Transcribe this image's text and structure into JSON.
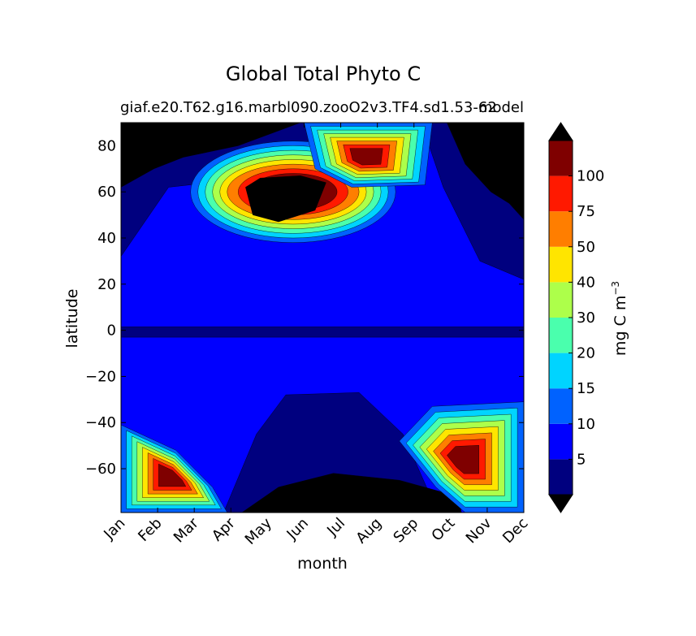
{
  "chart_data": {
    "type": "heatmap",
    "title": "Global Total Phyto C",
    "subtitle_left": "giaf.e20.T62.g16.marbl090.zooO2v3.TF4.sd1.53-62",
    "subtitle_right": "model",
    "xlabel": "month",
    "ylabel": "latitude",
    "x_ticks": [
      "Jan",
      "Feb",
      "Mar",
      "Apr",
      "May",
      "Jun",
      "Jul",
      "Aug",
      "Sep",
      "Oct",
      "Nov",
      "Dec"
    ],
    "y_ticks": [
      80,
      60,
      40,
      20,
      0,
      -20,
      -40,
      -60
    ],
    "y_tick_labels": [
      "80",
      "60",
      "40",
      "20",
      "0",
      "−20",
      "−40",
      "−60"
    ],
    "ylim": [
      -79,
      90
    ],
    "colorbar": {
      "label_main": "mg C m",
      "label_sup": "−3",
      "levels": [
        5,
        10,
        15,
        20,
        30,
        40,
        50,
        75,
        100
      ],
      "tick_labels": [
        "5",
        "10",
        "15",
        "20",
        "30",
        "40",
        "50",
        "75",
        "100"
      ],
      "colors": [
        "#00007f",
        "#0000ff",
        "#0062ff",
        "#00d4ff",
        "#4affad",
        "#adff4a",
        "#ffe500",
        "#ff7e00",
        "#ff1900",
        "#7f0000"
      ],
      "over_color": "#000000",
      "under_color": "#000000",
      "extend": "both"
    },
    "regions": [
      {
        "name": "background",
        "level": 1
      },
      {
        "name": "equatorial-band",
        "level": 0,
        "points": [
          [
            0,
            1.5
          ],
          [
            11,
            1.5
          ],
          [
            11,
            -3
          ],
          [
            0,
            -3
          ]
        ]
      },
      {
        "name": "south-subtropical-gyre",
        "level": 0,
        "points": [
          [
            2.8,
            -79
          ],
          [
            3.7,
            -45
          ],
          [
            4.5,
            -28
          ],
          [
            6.5,
            -27
          ],
          [
            7.7,
            -45
          ],
          [
            8.4,
            -70
          ],
          [
            8.2,
            -79
          ]
        ]
      },
      {
        "name": "north-polar-winter-low",
        "level": 0,
        "points": [
          [
            0,
            90
          ],
          [
            0,
            32
          ],
          [
            1.3,
            62
          ],
          [
            3,
            65
          ],
          [
            5.1,
            82
          ],
          [
            5.4,
            90
          ]
        ]
      },
      {
        "name": "north-autumn-low",
        "level": 0,
        "points": [
          [
            8.2,
            90
          ],
          [
            8.8,
            62
          ],
          [
            9.8,
            30
          ],
          [
            11,
            22
          ],
          [
            11,
            90
          ]
        ]
      },
      {
        "name": "north-winter-dark-left",
        "level": -1,
        "points": [
          [
            0,
            90
          ],
          [
            0,
            62
          ],
          [
            0.9,
            70
          ],
          [
            1.7,
            75
          ],
          [
            3.2,
            80
          ],
          [
            4.9,
            90
          ]
        ]
      },
      {
        "name": "north-winter-dark-right",
        "level": -1,
        "points": [
          [
            8.9,
            90
          ],
          [
            9.4,
            72
          ],
          [
            10.1,
            60
          ],
          [
            10.6,
            55
          ],
          [
            11,
            48
          ],
          [
            11,
            90
          ]
        ]
      },
      {
        "name": "south-polar-dark",
        "level": -1,
        "points": [
          [
            3.3,
            -79
          ],
          [
            4.3,
            -68
          ],
          [
            5.8,
            -62
          ],
          [
            7.6,
            -65
          ],
          [
            9.2,
            -72
          ],
          [
            9.3,
            -79
          ]
        ]
      },
      {
        "name": "north-bloom",
        "levels_outer_to_inner": [
          2,
          3,
          4,
          5,
          6,
          7,
          8,
          9
        ],
        "center": [
          4.7,
          60
        ],
        "spread_x": [
          2.8,
          2.6,
          2.4,
          2.2,
          2.0,
          1.8,
          1.5,
          1.2
        ],
        "spread_y": [
          22,
          20,
          18,
          16,
          14,
          12,
          10,
          8
        ]
      },
      {
        "name": "north-bloom-core",
        "level": -1,
        "points": [
          [
            3.4,
            62
          ],
          [
            3.6,
            50
          ],
          [
            4.3,
            47
          ],
          [
            5.3,
            52
          ],
          [
            5.6,
            64
          ],
          [
            4.9,
            67
          ],
          [
            3.8,
            66
          ]
        ]
      },
      {
        "name": "arctic-summer-bloom",
        "levels_outer_to_inner": [
          2,
          3,
          4,
          5,
          6,
          7,
          8,
          9
        ],
        "points_outer": [
          [
            5.0,
            90
          ],
          [
            5.3,
            70
          ],
          [
            6.3,
            62
          ],
          [
            8.3,
            63
          ],
          [
            8.5,
            90
          ]
        ]
      },
      {
        "name": "south-summer-bloom-left",
        "levels_outer_to_inner": [
          2,
          3,
          4,
          5,
          6,
          7,
          8,
          9
        ],
        "points_outer": [
          [
            0,
            -41
          ],
          [
            1.5,
            -52
          ],
          [
            2.5,
            -68
          ],
          [
            2.9,
            -79
          ],
          [
            0,
            -79
          ]
        ]
      },
      {
        "name": "south-summer-bloom-right",
        "levels_outer_to_inner": [
          2,
          3,
          4,
          5,
          6,
          7,
          8,
          9
        ],
        "points_outer": [
          [
            11,
            -31
          ],
          [
            8.5,
            -33
          ],
          [
            7.6,
            -48
          ],
          [
            8.6,
            -68
          ],
          [
            9.4,
            -79
          ],
          [
            11,
            -79
          ]
        ]
      }
    ]
  }
}
